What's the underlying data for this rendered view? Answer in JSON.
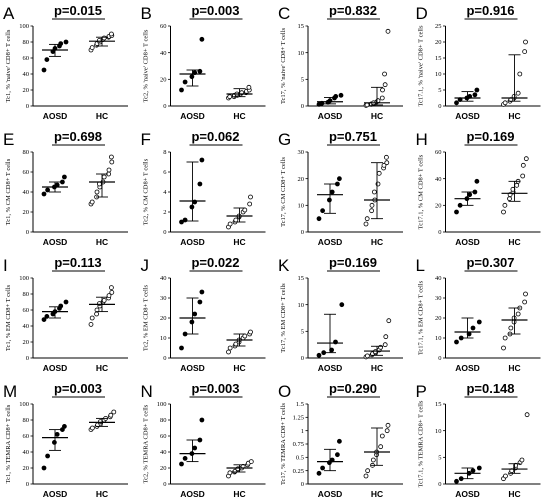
{
  "chart_data": [
    {
      "panel": "A",
      "type": "scatter",
      "pvalue": "p=0.015",
      "ylabel": "Tc1, % 'naive' CD8+ T cells",
      "categories": [
        "AOSD",
        "HC"
      ],
      "ylim": [
        0,
        100
      ],
      "yticks": [
        0,
        20,
        40,
        60,
        80,
        100
      ],
      "series": [
        {
          "values": [
            45,
            58,
            68,
            72,
            75,
            78,
            80
          ]
        },
        {
          "values": [
            70,
            73,
            76,
            78,
            80,
            82,
            83,
            85,
            86,
            87,
            88,
            90
          ]
        }
      ],
      "summary": [
        {
          "median": 70,
          "q1": 62,
          "q3": 77
        },
        {
          "median": 81,
          "q1": 75,
          "q3": 86
        }
      ]
    },
    {
      "panel": "B",
      "type": "scatter",
      "pvalue": "p=0.003",
      "ylabel": "Tc2, % 'naive' CD8+ T cells",
      "categories": [
        "AOSD",
        "HC"
      ],
      "ylim": [
        0,
        60
      ],
      "yticks": [
        0,
        20,
        40,
        60
      ],
      "series": [
        {
          "values": [
            12,
            18,
            22,
            25,
            26,
            50
          ]
        },
        {
          "values": [
            6,
            7,
            7,
            8,
            8,
            9,
            9,
            10,
            10,
            11,
            12,
            14
          ]
        }
      ],
      "summary": [
        {
          "median": 24,
          "q1": 15,
          "q3": 27
        },
        {
          "median": 9,
          "q1": 7,
          "q3": 13
        }
      ]
    },
    {
      "panel": "C",
      "type": "scatter",
      "pvalue": "p=0.832",
      "ylabel": "Tc17, % 'naive' CD8+ T cells",
      "categories": [
        "AOSD",
        "HC"
      ],
      "ylim": [
        0,
        15
      ],
      "yticks": [
        0,
        5,
        10,
        15
      ],
      "series": [
        {
          "values": [
            0.3,
            0.5,
            0.7,
            1.0,
            1.5,
            1.8,
            2.0
          ]
        },
        {
          "values": [
            0.1,
            0.2,
            0.3,
            0.4,
            0.5,
            0.6,
            0.8,
            1.0,
            1.5,
            3.0,
            4.0,
            6.0,
            14.0
          ]
        }
      ],
      "summary": [
        {
          "median": 0.8,
          "q1": 0.4,
          "q3": 1.6
        },
        {
          "median": 0.6,
          "q1": 0.2,
          "q3": 3.5
        }
      ]
    },
    {
      "panel": "D",
      "type": "scatter",
      "pvalue": "p=0.916",
      "ylabel": "Tc17.1, % 'naive' CD8+ T cells",
      "categories": [
        "AOSD",
        "HC"
      ],
      "ylim": [
        0,
        25
      ],
      "yticks": [
        0,
        5,
        10,
        15,
        20,
        25
      ],
      "series": [
        {
          "values": [
            1.0,
            2.0,
            2.5,
            3.0,
            3.5,
            5.0
          ]
        },
        {
          "values": [
            0.5,
            1.0,
            1.5,
            2.0,
            2.5,
            3.0,
            4.0,
            10.0,
            17.0,
            20.0
          ]
        }
      ],
      "summary": [
        {
          "median": 2.5,
          "q1": 1.5,
          "q3": 4.5
        },
        {
          "median": 2.5,
          "q1": 1.5,
          "q3": 16.0
        }
      ]
    },
    {
      "panel": "E",
      "type": "scatter",
      "pvalue": "p=0.698",
      "ylabel": "Tc1, % CM CD8+ T cells",
      "categories": [
        "AOSD",
        "HC"
      ],
      "ylim": [
        0,
        80
      ],
      "yticks": [
        0,
        20,
        40,
        60,
        80
      ],
      "series": [
        {
          "values": [
            38,
            42,
            45,
            47,
            50,
            55
          ]
        },
        {
          "values": [
            28,
            30,
            35,
            40,
            45,
            48,
            50,
            55,
            58,
            62,
            70,
            75
          ]
        }
      ],
      "summary": [
        {
          "median": 45,
          "q1": 40,
          "q3": 50
        },
        {
          "median": 50,
          "q1": 35,
          "q3": 58
        }
      ]
    },
    {
      "panel": "F",
      "type": "scatter",
      "pvalue": "p=0.062",
      "ylabel": "Tc2, % CM CD8+ T cells",
      "categories": [
        "AOSD",
        "HC"
      ],
      "ylim": [
        0,
        8
      ],
      "yticks": [
        0,
        2,
        4,
        6,
        8
      ],
      "series": [
        {
          "values": [
            1.0,
            1.2,
            2.5,
            3.0,
            4.8,
            7.2
          ]
        },
        {
          "values": [
            0.5,
            0.8,
            1.0,
            1.2,
            1.5,
            1.6,
            2.0,
            2.2,
            2.8,
            3.5
          ]
        }
      ],
      "summary": [
        {
          "median": 3.1,
          "q1": 1.1,
          "q3": 7.0
        },
        {
          "median": 1.6,
          "q1": 1.0,
          "q3": 2.4
        }
      ]
    },
    {
      "panel": "G",
      "type": "scatter",
      "pvalue": "p=0.751",
      "ylabel": "Tc17, % CM CD8+ T cells",
      "categories": [
        "AOSD",
        "HC"
      ],
      "ylim": [
        0,
        30
      ],
      "yticks": [
        0,
        10,
        20,
        30
      ],
      "series": [
        {
          "values": [
            5,
            8,
            12,
            15,
            18,
            20
          ]
        },
        {
          "values": [
            3,
            5,
            8,
            10,
            12,
            15,
            18,
            22,
            24,
            25,
            26,
            28
          ]
        }
      ],
      "summary": [
        {
          "median": 14,
          "q1": 7,
          "q3": 18
        },
        {
          "median": 12,
          "q1": 5,
          "q3": 26
        }
      ]
    },
    {
      "panel": "H",
      "type": "scatter",
      "pvalue": "p=0.169",
      "ylabel": "Tc17.1, % CM CD8+ T cells",
      "categories": [
        "AOSD",
        "HC"
      ],
      "ylim": [
        0,
        60
      ],
      "yticks": [
        0,
        20,
        40,
        60
      ],
      "series": [
        {
          "values": [
            15,
            20,
            25,
            28,
            30,
            38
          ]
        },
        {
          "values": [
            15,
            20,
            25,
            28,
            30,
            32,
            35,
            38,
            42,
            50,
            55
          ]
        }
      ],
      "summary": [
        {
          "median": 25,
          "q1": 20,
          "q3": 30
        },
        {
          "median": 29,
          "q1": 23,
          "q3": 38
        }
      ]
    },
    {
      "panel": "I",
      "type": "scatter",
      "pvalue": "p=0.113",
      "ylabel": "Tc1, % EM CD8+ T cells",
      "categories": [
        "AOSD",
        "HC"
      ],
      "ylim": [
        0,
        100
      ],
      "yticks": [
        0,
        20,
        40,
        60,
        80,
        100
      ],
      "series": [
        {
          "values": [
            48,
            52,
            55,
            58,
            62,
            65,
            70
          ]
        },
        {
          "values": [
            42,
            50,
            55,
            60,
            65,
            68,
            70,
            72,
            75,
            78,
            82,
            88
          ]
        }
      ],
      "summary": [
        {
          "median": 58,
          "q1": 50,
          "q3": 64
        },
        {
          "median": 67,
          "q1": 58,
          "q3": 76
        }
      ]
    },
    {
      "panel": "J",
      "type": "scatter",
      "pvalue": "p=0.022",
      "ylabel": "Tc2, % EM CD8+ T cells",
      "categories": [
        "AOSD",
        "HC"
      ],
      "ylim": [
        0,
        40
      ],
      "yticks": [
        0,
        10,
        20,
        30,
        40
      ],
      "series": [
        {
          "values": [
            5,
            12,
            18,
            22,
            28,
            33
          ]
        },
        {
          "values": [
            3,
            5,
            6,
            7,
            8,
            9,
            10,
            11,
            12,
            13
          ]
        }
      ],
      "summary": [
        {
          "median": 20,
          "q1": 12,
          "q3": 30
        },
        {
          "median": 9,
          "q1": 6,
          "q3": 12
        }
      ]
    },
    {
      "panel": "K",
      "type": "scatter",
      "pvalue": "p=0.169",
      "ylabel": "Tc17, % EM CD8+ T cells",
      "categories": [
        "AOSD",
        "HC"
      ],
      "ylim": [
        0,
        15
      ],
      "yticks": [
        0,
        5,
        10,
        15
      ],
      "series": [
        {
          "values": [
            0.5,
            1.0,
            1.5,
            3.0,
            10.0
          ]
        },
        {
          "values": [
            0.2,
            0.4,
            0.6,
            0.8,
            1.0,
            1.2,
            1.5,
            2.0,
            2.5,
            4.0,
            7.0
          ]
        }
      ],
      "summary": [
        {
          "median": 2.8,
          "q1": 1.0,
          "q3": 8.2
        },
        {
          "median": 1.3,
          "q1": 0.5,
          "q3": 2.2
        }
      ]
    },
    {
      "panel": "L",
      "type": "scatter",
      "pvalue": "p=0.307",
      "ylabel": "Tc17.1, % EM CD8+ T cells",
      "categories": [
        "AOSD",
        "HC"
      ],
      "ylim": [
        0,
        40
      ],
      "yticks": [
        0,
        10,
        20,
        30,
        40
      ],
      "series": [
        {
          "values": [
            8,
            10,
            12,
            15,
            18
          ]
        },
        {
          "values": [
            5,
            10,
            12,
            15,
            18,
            20,
            22,
            25,
            28,
            32
          ]
        }
      ],
      "summary": [
        {
          "median": 13,
          "q1": 10,
          "q3": 20
        },
        {
          "median": 19,
          "q1": 12,
          "q3": 25
        }
      ]
    },
    {
      "panel": "M",
      "type": "scatter",
      "pvalue": "p=0.003",
      "ylabel": "Tc1, % TEMRA CD8+ T cells",
      "categories": [
        "AOSD",
        "HC"
      ],
      "ylim": [
        0,
        100
      ],
      "yticks": [
        0,
        20,
        40,
        60,
        80,
        100
      ],
      "series": [
        {
          "values": [
            20,
            35,
            52,
            62,
            68,
            72
          ]
        },
        {
          "values": [
            68,
            70,
            72,
            74,
            76,
            78,
            80,
            82,
            84,
            86,
            90
          ]
        }
      ],
      "summary": [
        {
          "median": 58,
          "q1": 42,
          "q3": 68
        },
        {
          "median": 77,
          "q1": 72,
          "q3": 82
        }
      ]
    },
    {
      "panel": "N",
      "type": "scatter",
      "pvalue": "p=0.003",
      "ylabel": "Tc2, % TEMRA CD8+ T cells",
      "categories": [
        "AOSD",
        "HC"
      ],
      "ylim": [
        0,
        100
      ],
      "yticks": [
        0,
        20,
        40,
        60,
        80,
        100
      ],
      "series": [
        {
          "values": [
            25,
            32,
            38,
            45,
            55,
            80
          ]
        },
        {
          "values": [
            10,
            14,
            15,
            16,
            18,
            19,
            20,
            22,
            24,
            26,
            28
          ]
        }
      ],
      "summary": [
        {
          "median": 38,
          "q1": 28,
          "q3": 55
        },
        {
          "median": 20,
          "q1": 15,
          "q3": 24
        }
      ]
    },
    {
      "panel": "O",
      "type": "scatter",
      "pvalue": "p=0.290",
      "ylabel": "Tc17, % TEMRA CD8+ T cells",
      "categories": [
        "AOSD",
        "HC"
      ],
      "ylim": [
        0,
        1.5
      ],
      "yticks": [
        0,
        0.25,
        0.5,
        0.75,
        1.0,
        1.25,
        1.5
      ],
      "series": [
        {
          "values": [
            0.2,
            0.3,
            0.4,
            0.45,
            0.55,
            0.8
          ]
        },
        {
          "values": [
            0.15,
            0.25,
            0.35,
            0.45,
            0.55,
            0.6,
            0.7,
            0.9,
            1.0,
            1.1
          ]
        }
      ],
      "summary": [
        {
          "median": 0.42,
          "q1": 0.25,
          "q3": 0.65
        },
        {
          "median": 0.6,
          "q1": 0.35,
          "q3": 1.05
        }
      ]
    },
    {
      "panel": "P",
      "type": "scatter",
      "pvalue": "p=0.148",
      "ylabel": "Tc17.1, % TEMRA CD8+ T cells",
      "categories": [
        "AOSD",
        "HC"
      ],
      "ylim": [
        0,
        15
      ],
      "yticks": [
        0,
        5,
        10,
        15
      ],
      "series": [
        {
          "values": [
            0.5,
            1.0,
            2.0,
            2.5,
            3.0
          ]
        },
        {
          "values": [
            1.0,
            1.5,
            2.0,
            2.5,
            3.0,
            3.5,
            4.0,
            4.5,
            13.0
          ]
        }
      ],
      "summary": [
        {
          "median": 2.0,
          "q1": 1.0,
          "q3": 3.0
        },
        {
          "median": 2.8,
          "q1": 2.0,
          "q3": 3.8
        }
      ]
    }
  ]
}
